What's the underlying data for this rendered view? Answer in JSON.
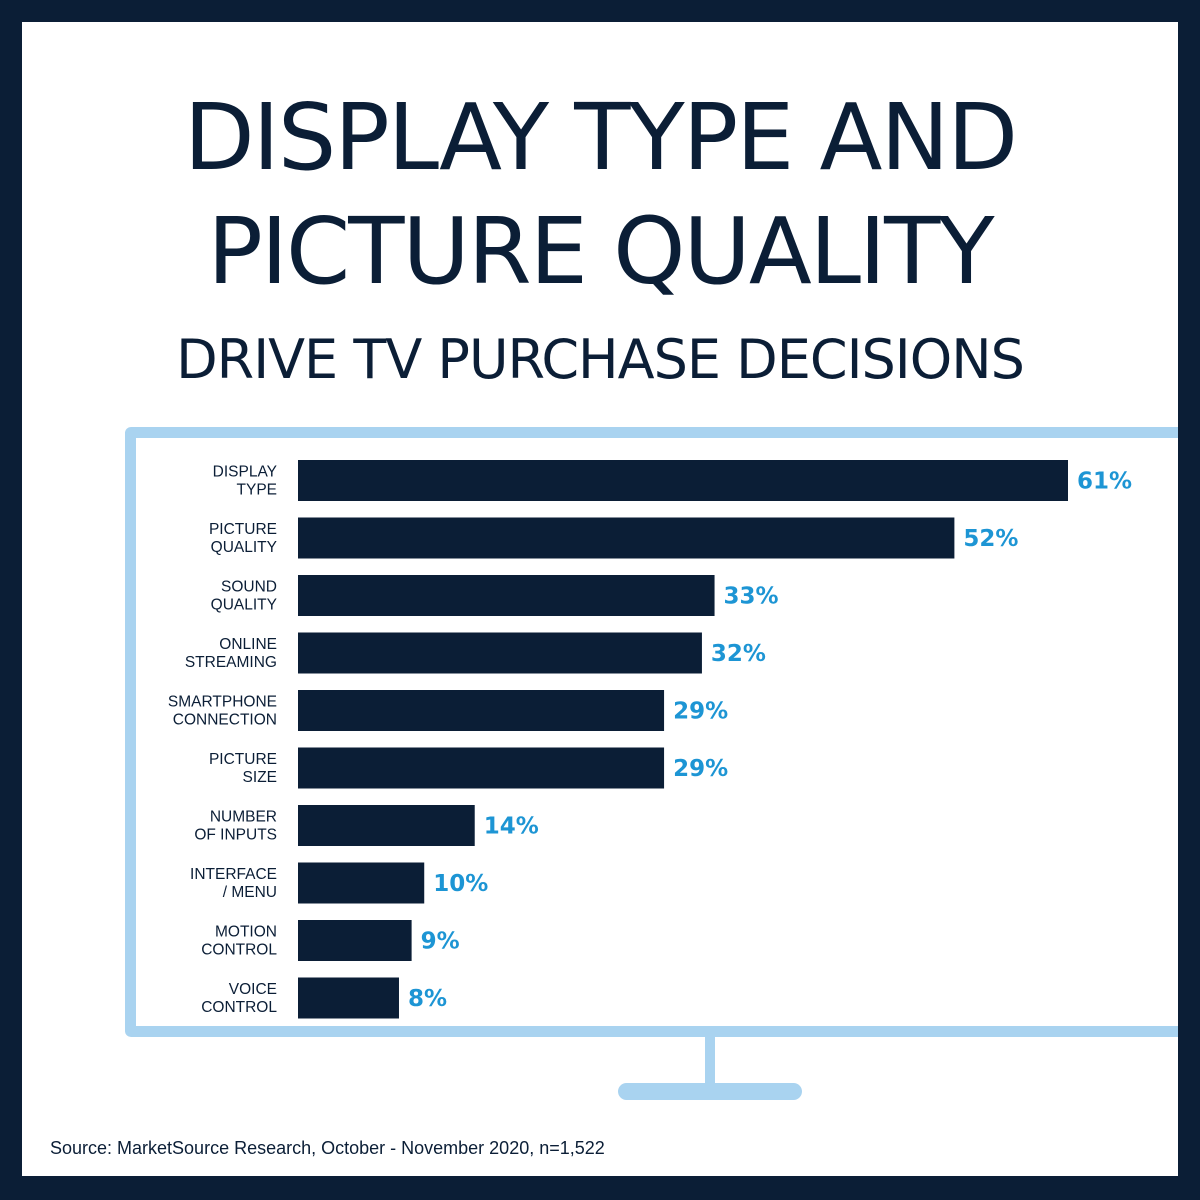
{
  "header": {
    "title_line1": "DISPLAY TYPE AND",
    "title_line2": "PICTURE QUALITY",
    "subtitle": "DRIVE TV PURCHASE DECISIONS"
  },
  "source": "Source: MarketSource Research, October - November 2020, n=1,522",
  "colors": {
    "frame": "#0b1e36",
    "bar": "#0b1e36",
    "value_label": "#1d95d4",
    "tv_outline": "#a9d3f0"
  },
  "chart_data": {
    "type": "bar",
    "orientation": "horizontal",
    "title": "",
    "xlabel": "",
    "ylabel": "",
    "xlim": [
      0,
      61
    ],
    "grid": false,
    "categories": [
      [
        "DISPLAY",
        "TYPE"
      ],
      [
        "PICTURE",
        "QUALITY"
      ],
      [
        "SOUND",
        "QUALITY"
      ],
      [
        "ONLINE",
        "STREAMING"
      ],
      [
        "SMARTPHONE",
        "CONNECTION"
      ],
      [
        "PICTURE",
        "SIZE"
      ],
      [
        "NUMBER",
        "OF INPUTS"
      ],
      [
        "INTERFACE",
        "/ MENU"
      ],
      [
        "MOTION",
        "CONTROL"
      ],
      [
        "VOICE",
        "CONTROL"
      ]
    ],
    "values": [
      61,
      52,
      33,
      32,
      29,
      29,
      14,
      10,
      9,
      8
    ],
    "value_labels": [
      "61%",
      "52%",
      "33%",
      "32%",
      "29%",
      "29%",
      "14%",
      "10%",
      "9%",
      "8%"
    ]
  }
}
